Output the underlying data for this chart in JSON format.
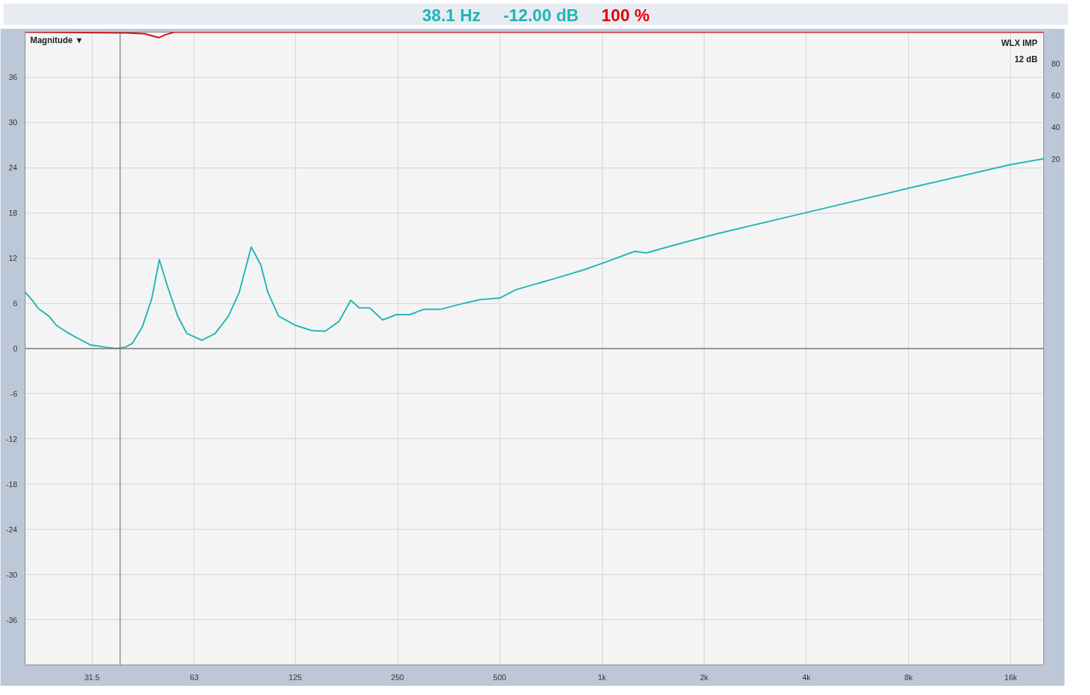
{
  "chart_data": {
    "type": "line",
    "annotations": [
      "38.1 Hz",
      "-12.00 dB",
      "100 %",
      "Magnitude ▼",
      "WLX IMP",
      "12 dB"
    ],
    "xlim": [
      20,
      20000
    ],
    "ylim": [
      -42,
      42
    ],
    "y2lim": [
      -300,
      100
    ],
    "xticks": [
      31.5,
      63,
      125,
      250,
      500,
      {
        "value": 1000,
        "label": "1k"
      },
      {
        "value": 2000,
        "label": "2k"
      },
      {
        "value": 4000,
        "label": "4k"
      },
      {
        "value": 8000,
        "label": "8k"
      },
      {
        "value": 16000,
        "label": "16k"
      }
    ],
    "yticks": [
      -36,
      -30,
      -24,
      -18,
      -12,
      -6,
      0,
      6,
      12,
      18,
      24,
      30,
      36
    ],
    "y2ticks": [
      20,
      40,
      60,
      80
    ],
    "grid": true,
    "log": "x",
    "marker": "none",
    "line_style": "solid",
    "ref_lines": [
      {
        "axis": "x",
        "value": 38.1,
        "color": "#555555"
      },
      {
        "axis": "y",
        "value": 0,
        "color": "#777777"
      }
    ],
    "series": [
      {
        "color": "#1fb5b5",
        "x": [
          20,
          21,
          21.9,
          23.5,
          24.7,
          26.5,
          28.5,
          31.1,
          34.3,
          37.1,
          39.5,
          41.4,
          44.3,
          47.2,
          49.7,
          52.4,
          56.3,
          59.9,
          66.3,
          72.6,
          79.4,
          85.5,
          92.7,
          98.9,
          103.7,
          111.6,
          124.8,
          139.7,
          153,
          168,
          182,
          193,
          207,
          226,
          248,
          272,
          298,
          334,
          383,
          438,
          500,
          557,
          727,
          876,
          1000,
          1248,
          1350,
          1718,
          2208,
          4041,
          8025,
          15900,
          20000
        ],
        "values": [
          7.5,
          6.4,
          5.3,
          4.3,
          3.1,
          2.2,
          1.4,
          0.5,
          0.2,
          0,
          0.2,
          0.7,
          2.9,
          6.6,
          11.8,
          8.4,
          4.3,
          2.0,
          1.1,
          2.0,
          4.3,
          7.5,
          13.5,
          11.1,
          7.5,
          4.3,
          3.1,
          2.4,
          2.3,
          3.6,
          6.4,
          5.4,
          5.4,
          3.8,
          4.5,
          4.5,
          5.2,
          5.2,
          5.9,
          6.5,
          6.7,
          7.8,
          9.3,
          10.4,
          11.3,
          12.9,
          12.7,
          14.0,
          15.3,
          18.1,
          21.3,
          24.4,
          25.2
        ]
      },
      {
        "color": "#dd0000",
        "axis": "y2",
        "x": [
          20,
          40,
          45,
          49.5,
          52,
          55,
          20000
        ],
        "values": [
          100,
          99.6,
          99,
          96.5,
          98.5,
          100,
          100
        ]
      }
    ]
  }
}
